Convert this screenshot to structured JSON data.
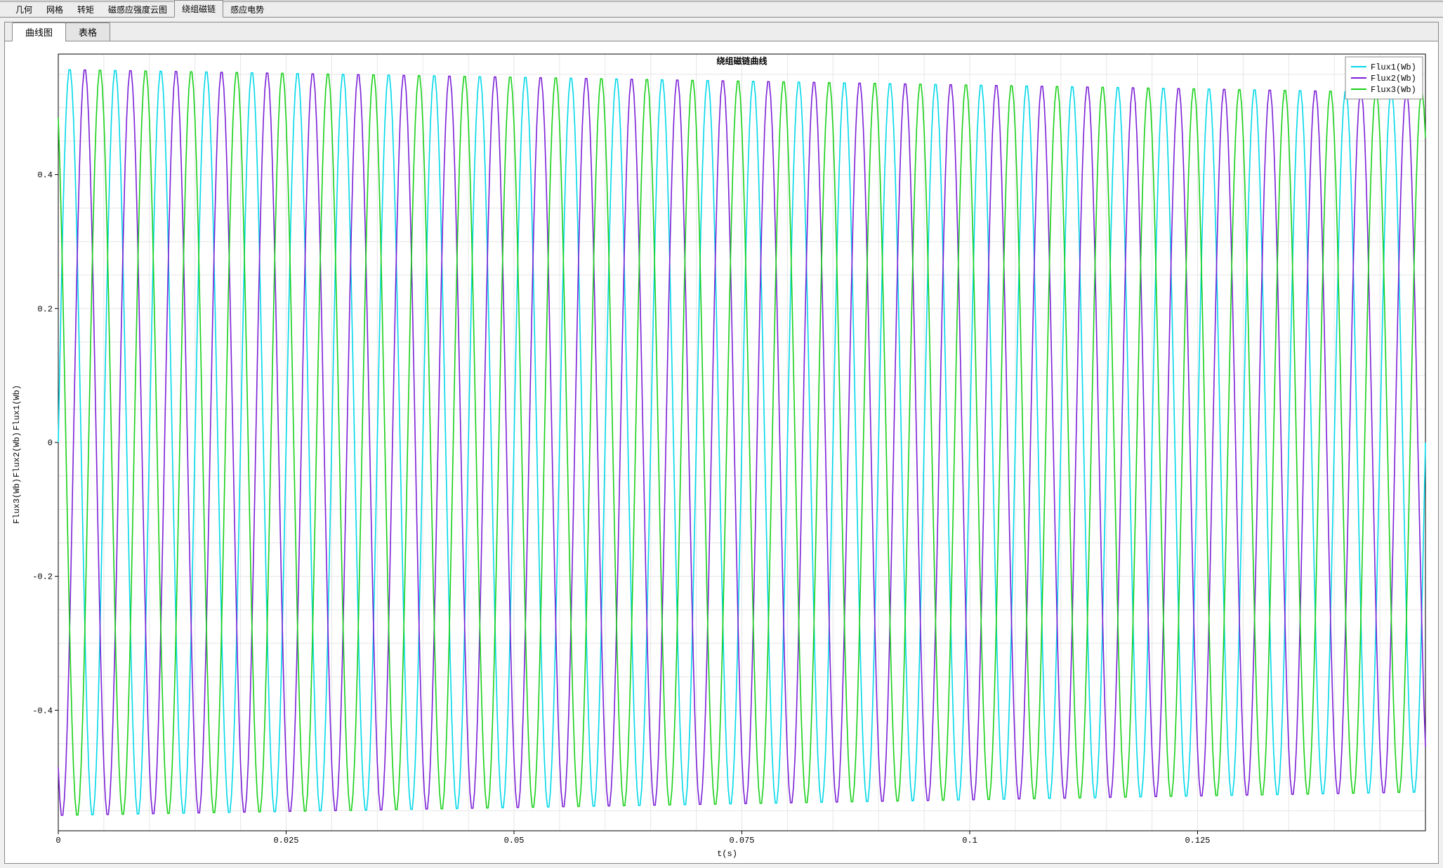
{
  "main_tabs": {
    "items": [
      "几何",
      "网格",
      "转矩",
      "磁感应强度云图",
      "绕组磁链",
      "感应电势"
    ],
    "active_index": 4
  },
  "sub_tabs": {
    "items": [
      "曲线图",
      "表格"
    ],
    "active_index": 0
  },
  "ylabels": [
    "Flux1(Wb)",
    "Flux2(Wb)",
    "Flux3(Wb)"
  ],
  "xlabel": "t(s)",
  "chart": {
    "type": "line",
    "title": "绕组磁链曲线",
    "title_fontsize": 13,
    "label_font": "Courier New",
    "background_color": "#ffffff",
    "grid_color": "#e6e6e6",
    "axis_color": "#000000",
    "xlim": [
      0,
      0.15
    ],
    "ylim": [
      -0.58,
      0.58
    ],
    "xticks": [
      0,
      0.025,
      0.05,
      0.075,
      0.1,
      0.125
    ],
    "yticks": [
      -0.4,
      -0.2,
      0,
      0.2,
      0.4
    ],
    "x_minor_ticks_per": 5,
    "y_minor_ticks_per": 4,
    "line_width": 1.6,
    "num_samples": 900,
    "series": [
      {
        "name": "Flux1(Wb)",
        "color": "#00d8e8",
        "amplitude_start": 0.56,
        "amplitude_end": 0.525,
        "freq_hz": 200,
        "phase_deg": 0
      },
      {
        "name": "Flux2(Wb)",
        "color": "#7b1fd6",
        "amplitude_start": 0.56,
        "amplitude_end": 0.525,
        "freq_hz": 200,
        "phase_deg": -120
      },
      {
        "name": "Flux3(Wb)",
        "color": "#18d018",
        "amplitude_start": 0.56,
        "amplitude_end": 0.525,
        "freq_hz": 200,
        "phase_deg": 120
      }
    ],
    "legend": {
      "position": "top-right",
      "bg": "#ffffff",
      "border": "#888888"
    }
  }
}
